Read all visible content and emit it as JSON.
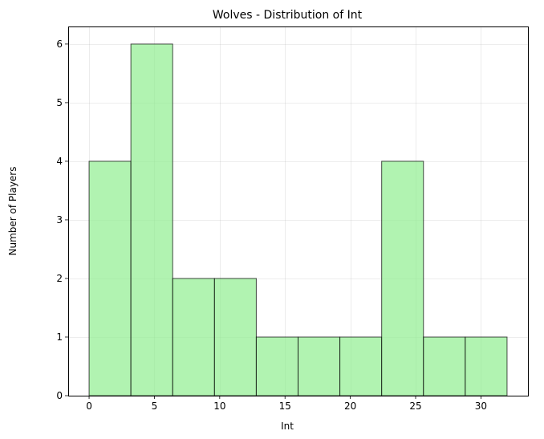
{
  "chart_data": {
    "type": "histogram",
    "title": "Wolves - Distribution of Int",
    "xlabel": "Int",
    "ylabel": "Number of Players",
    "xlim": [
      -1.6,
      33.6
    ],
    "ylim": [
      0,
      6.3
    ],
    "x_ticks": [
      0,
      5,
      10,
      15,
      20,
      25,
      30
    ],
    "y_ticks": [
      0,
      1,
      2,
      3,
      4,
      5,
      6
    ],
    "grid": true,
    "bin_edges": [
      0,
      3.2,
      6.4,
      9.6,
      12.8,
      16.0,
      19.2,
      22.4,
      25.6,
      28.8,
      32.0
    ],
    "counts": [
      4,
      6,
      2,
      2,
      1,
      1,
      1,
      4,
      1,
      1
    ],
    "bar_color": "#90EE90",
    "bar_edge_color": "#000000"
  }
}
